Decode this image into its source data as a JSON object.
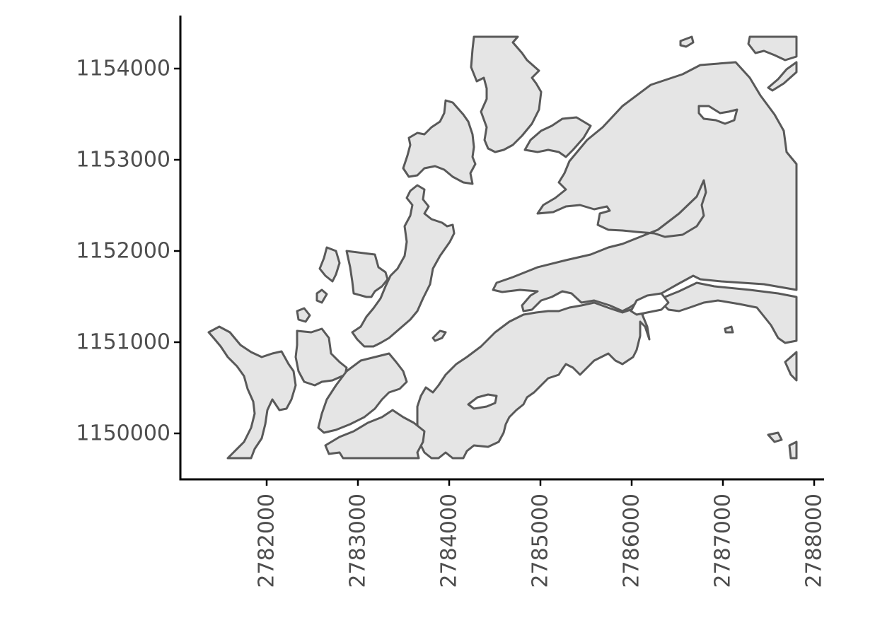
{
  "map": {
    "type": "polygon-map",
    "land_fill_color": "#e5e5e5",
    "outline_color": "#595959",
    "background_color": "#ffffff",
    "x_axis": {
      "title": "",
      "range": [
        2781400,
        2788100
      ],
      "ticks": [
        {
          "value": 2782000,
          "label": "2782000"
        },
        {
          "value": 2783000,
          "label": "2783000"
        },
        {
          "value": 2784000,
          "label": "2784000"
        },
        {
          "value": 2785000,
          "label": "2785000"
        },
        {
          "value": 2786000,
          "label": "2786000"
        },
        {
          "value": 2787000,
          "label": "2787000"
        },
        {
          "value": 2788000,
          "label": "2788000"
        }
      ],
      "label_rotation": "vertical"
    },
    "y_axis": {
      "title": "",
      "range": [
        1149500,
        1154550
      ],
      "ticks": [
        {
          "value": 1150000,
          "label": "1150000"
        },
        {
          "value": 1151000,
          "label": "1151000"
        },
        {
          "value": 1152000,
          "label": "1152000"
        },
        {
          "value": 1153000,
          "label": "1153000"
        },
        {
          "value": 1154000,
          "label": "1154000"
        }
      ]
    },
    "grid": false,
    "legend": "none"
  }
}
